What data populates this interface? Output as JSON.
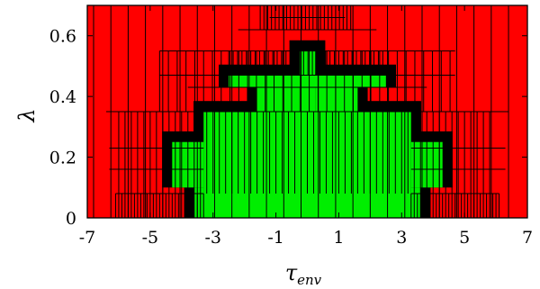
{
  "chart_data": {
    "type": "heatmap",
    "title": "",
    "xlabel": "τ",
    "xlabel_sub": "env",
    "ylabel": "λ",
    "xlim": [
      -7,
      7
    ],
    "ylim": [
      0,
      0.7
    ],
    "xticks": [
      -7,
      -5,
      -3,
      -1,
      1,
      3,
      5,
      7
    ],
    "yticks": [
      0,
      0.2,
      0.4,
      0.6
    ],
    "ytick_labels": [
      "0",
      "0.2",
      "0.4",
      "0.6"
    ],
    "grid": false,
    "legend": "none",
    "colors": {
      "infeasible": "#ff0000",
      "feasible": "#00ee00",
      "boundary": "#000000",
      "edge": "#000000"
    },
    "regions": [
      {
        "class": "feasible",
        "x0": -3.3,
        "x1": 3.3,
        "y0": 0.0,
        "y1": 0.35
      },
      {
        "class": "feasible",
        "x0": -0.25,
        "x1": 0.25,
        "y0": 0.35,
        "y1": 0.55
      },
      {
        "class": "feasible",
        "x0": -1.6,
        "x1": -0.25,
        "y0": 0.35,
        "y1": 0.43
      },
      {
        "class": "feasible",
        "x0": 0.25,
        "x1": 1.6,
        "y0": 0.35,
        "y1": 0.43
      },
      {
        "class": "feasible",
        "x0": -4.3,
        "x1": -3.3,
        "y0": 0.1,
        "y1": 0.25
      },
      {
        "class": "feasible",
        "x0": 3.3,
        "x1": 4.3,
        "y0": 0.1,
        "y1": 0.25
      },
      {
        "class": "feasible",
        "x0": -3.6,
        "x1": -3.3,
        "y0": 0.0,
        "y1": 0.1
      },
      {
        "class": "feasible",
        "x0": 3.3,
        "x1": 3.6,
        "y0": 0.0,
        "y1": 0.1
      },
      {
        "class": "feasible",
        "x0": -2.5,
        "x1": 2.5,
        "y0": 0.43,
        "y1": 0.47
      }
    ]
  }
}
